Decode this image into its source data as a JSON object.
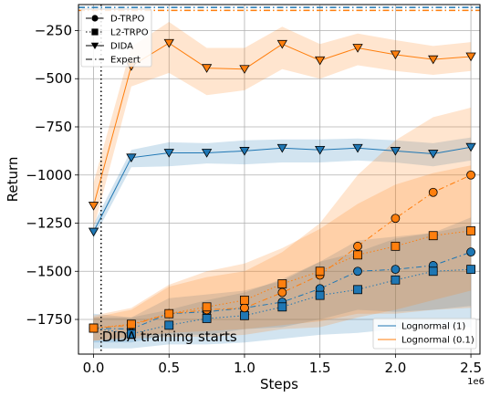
{
  "chart_data": {
    "type": "line",
    "xlabel": "Steps",
    "ylabel": "Return",
    "x_offset_label": "1e6",
    "xlim": [
      -0.1,
      2.56
    ],
    "ylim": [
      -1930,
      -115
    ],
    "xticks": [
      0.0,
      0.5,
      1.0,
      1.5,
      2.0,
      2.5
    ],
    "xtick_labels": [
      "0.0",
      "0.5",
      "1.0",
      "1.5",
      "2.0",
      "2.5"
    ],
    "yticks": [
      -1750,
      -1500,
      -1250,
      -1000,
      -750,
      -500,
      -250
    ],
    "ytick_labels": [
      "−1750",
      "−1500",
      "−1250",
      "−1000",
      "−750",
      "−500",
      "−250"
    ],
    "grid": true,
    "colors": {
      "lognormal_1": "#1f77b4",
      "lognormal_01": "#ff7f0e"
    },
    "annotation": {
      "text": "DIDA training starts",
      "x": 0.05
    },
    "expert": {
      "lognormal_1": -130,
      "lognormal_01": -145
    },
    "x": [
      0,
      0.25,
      0.5,
      0.75,
      1.0,
      1.25,
      1.5,
      1.75,
      2.0,
      2.25,
      2.5
    ],
    "series": [
      {
        "group": "Lognormal (1)",
        "method": "D-TRPO",
        "color": "#1f77b4",
        "marker": "circle",
        "dash": "6,3,1.5,3",
        "values": [
          -1795,
          -1800,
          -1720,
          -1710,
          -1690,
          -1660,
          -1590,
          -1500,
          -1490,
          -1470,
          -1400
        ],
        "lower": [
          -1870,
          -1870,
          -1830,
          -1830,
          -1800,
          -1790,
          -1750,
          -1700,
          -1710,
          -1700,
          -1680
        ],
        "upper": [
          -1740,
          -1740,
          -1640,
          -1620,
          -1600,
          -1550,
          -1450,
          -1340,
          -1320,
          -1300,
          -1220
        ]
      },
      {
        "group": "Lognormal (1)",
        "method": "L2-TRPO",
        "color": "#1f77b4",
        "marker": "square",
        "dash": "1.5,2.5",
        "values": [
          -1795,
          -1825,
          -1780,
          -1745,
          -1730,
          -1685,
          -1625,
          -1595,
          -1545,
          -1500,
          -1490
        ],
        "lower": [
          -1900,
          -1900,
          -1880,
          -1880,
          -1870,
          -1850,
          -1830,
          -1820,
          -1800,
          -1790,
          -1790
        ],
        "upper": [
          -1720,
          -1740,
          -1700,
          -1650,
          -1610,
          -1540,
          -1450,
          -1400,
          -1330,
          -1300,
          -1260
        ]
      },
      {
        "group": "Lognormal (1)",
        "method": "DIDA",
        "color": "#1f77b4",
        "marker": "triangle",
        "dash": "",
        "values": [
          -1295,
          -910,
          -885,
          -885,
          -875,
          -860,
          -870,
          -860,
          -875,
          -890,
          -855
        ],
        "lower": [
          -1330,
          -960,
          -955,
          -940,
          -945,
          -935,
          -935,
          -925,
          -935,
          -955,
          -925
        ],
        "upper": [
          -1255,
          -870,
          -830,
          -835,
          -820,
          -815,
          -815,
          -810,
          -820,
          -835,
          -805
        ]
      },
      {
        "group": "Lognormal (0.1)",
        "method": "D-TRPO",
        "color": "#ff7f0e",
        "marker": "circle",
        "dash": "6,3,1.5,3",
        "values": [
          -1795,
          -1780,
          -1720,
          -1700,
          -1690,
          -1610,
          -1520,
          -1370,
          -1225,
          -1090,
          -1000
        ],
        "lower": [
          -1860,
          -1850,
          -1840,
          -1840,
          -1830,
          -1800,
          -1790,
          -1740,
          -1700,
          -1650,
          -1600
        ],
        "upper": [
          -1740,
          -1700,
          -1580,
          -1530,
          -1500,
          -1400,
          -1250,
          -1000,
          -820,
          -700,
          -650
        ]
      },
      {
        "group": "Lognormal (0.1)",
        "method": "L2-TRPO",
        "color": "#ff7f0e",
        "marker": "square",
        "dash": "1.5,2.5",
        "values": [
          -1795,
          -1775,
          -1720,
          -1685,
          -1650,
          -1565,
          -1500,
          -1415,
          -1370,
          -1315,
          -1290
        ],
        "lower": [
          -1860,
          -1840,
          -1820,
          -1810,
          -1800,
          -1780,
          -1760,
          -1720,
          -1720,
          -1700,
          -1690
        ],
        "upper": [
          -1730,
          -1690,
          -1570,
          -1500,
          -1460,
          -1380,
          -1280,
          -1150,
          -1050,
          -990,
          -950
        ]
      },
      {
        "group": "Lognormal (0.1)",
        "method": "DIDA",
        "color": "#ff7f0e",
        "marker": "triangle",
        "dash": "",
        "values": [
          -1160,
          -435,
          -315,
          -445,
          -450,
          -320,
          -405,
          -340,
          -375,
          -400,
          -385
        ],
        "lower": [
          -1280,
          -540,
          -470,
          -585,
          -560,
          -450,
          -500,
          -430,
          -460,
          -480,
          -460
        ],
        "upper": [
          -1040,
          -335,
          -205,
          -340,
          -340,
          -230,
          -320,
          -265,
          -300,
          -330,
          -310
        ]
      }
    ],
    "legend_methods": [
      {
        "label": "D-TRPO",
        "marker": "circle",
        "dash": "6,3,1.5,3"
      },
      {
        "label": "L2-TRPO",
        "marker": "square",
        "dash": "1.5,2.5"
      },
      {
        "label": "DIDA",
        "marker": "triangle",
        "dash": ""
      },
      {
        "label": "Expert",
        "marker": "none",
        "dash": "7,3,1.5,3"
      }
    ],
    "legend_methods_position": "top-left",
    "legend_groups": [
      {
        "label": "Lognormal (1)",
        "color": "#1f77b4"
      },
      {
        "label": "Lognormal (0.1)",
        "color": "#ff7f0e"
      }
    ],
    "legend_groups_position": "bottom-right"
  }
}
